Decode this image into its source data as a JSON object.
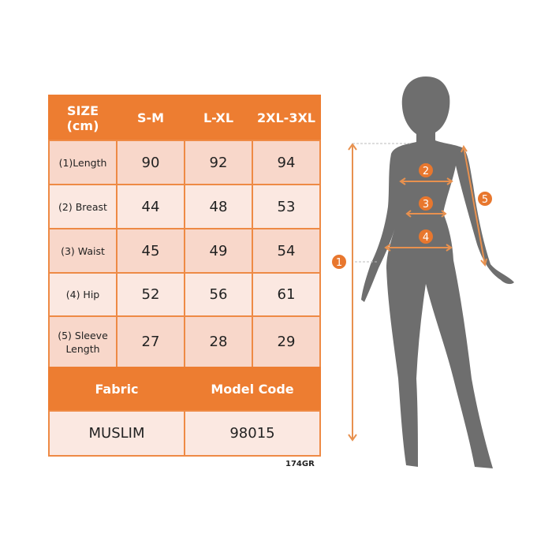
{
  "table": {
    "header": [
      "SIZE\n(cm)",
      "S-M",
      "L-XL",
      "2XL-3XL"
    ],
    "rows": [
      {
        "label": "(1)Length",
        "values": [
          "90",
          "92",
          "94"
        ]
      },
      {
        "label": "(2) Breast",
        "values": [
          "44",
          "48",
          "53"
        ]
      },
      {
        "label": "(3) Waist",
        "values": [
          "45",
          "49",
          "54"
        ]
      },
      {
        "label": "(4) Hip",
        "values": [
          "52",
          "56",
          "61"
        ]
      },
      {
        "label": "(5) Sleeve Length",
        "values": [
          "27",
          "28",
          "29"
        ]
      }
    ],
    "footer_header": [
      "Fabric",
      "Model Code"
    ],
    "footer_values": [
      "MUSLIM",
      "98015"
    ]
  },
  "product_code": "174GR",
  "figure": {
    "markers": [
      "1",
      "2",
      "3",
      "4",
      "5"
    ]
  },
  "colors": {
    "accent": "#ED7D31",
    "cell_dark": "#F8D7CA",
    "cell_light": "#FBE8E1",
    "silhouette": "#6E6E6E"
  }
}
